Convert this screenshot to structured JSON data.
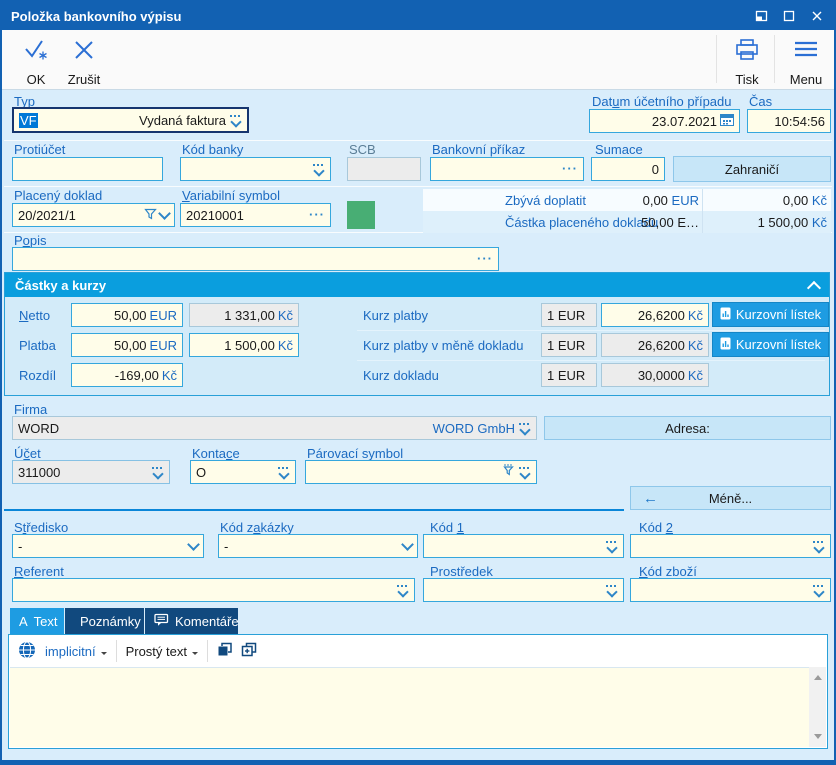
{
  "window": {
    "title": "Položka bankovního výpisu"
  },
  "toolbar": {
    "ok": "OK",
    "cancel": "Zrušit",
    "print": "Tisk",
    "menu": "Menu"
  },
  "fields": {
    "typ": {
      "label": "Typ",
      "code": "VF",
      "value": "Vydaná faktura"
    },
    "datum": {
      "label": "Datum účetního případu",
      "value": "23.07.2021"
    },
    "cas": {
      "label": "Čas",
      "value": "10:54:56"
    },
    "protiucet": {
      "label": "Protiúčet",
      "value": ""
    },
    "kod_banky": {
      "label": "Kód banky",
      "value": ""
    },
    "scb": {
      "label": "SCB",
      "value": ""
    },
    "bankovni_prikaz": {
      "label": "Bankovní příkaz",
      "value": ""
    },
    "sumace": {
      "label": "Sumace",
      "value": "0"
    },
    "zahranici": "Zahraničí",
    "placeny_doklad": {
      "label": "Placený doklad",
      "value": "20/2021/1"
    },
    "variabilni_symbol": {
      "label": "Variabilní symbol",
      "value": "20210001"
    },
    "popis": {
      "label": "Popis",
      "value": ""
    }
  },
  "summary": {
    "rows": [
      {
        "label": "Zbývá doplatit",
        "amount": "0,00",
        "currency": "EUR",
        "amount_czk": "0,00",
        "currency_czk": "Kč"
      },
      {
        "label": "Částka placeného dokladu",
        "amount": "50,00 E…",
        "currency": "",
        "amount_czk": "1 500,00",
        "currency_czk": "Kč"
      }
    ]
  },
  "kurzy": {
    "title": "Částky a kurzy",
    "amount_rows": [
      {
        "label": "Netto",
        "amount": "50,00",
        "currency": "EUR",
        "czk": "1 331,00",
        "czk_currency": "Kč"
      },
      {
        "label": "Platba",
        "amount": "50,00",
        "currency": "EUR",
        "czk": "1 500,00",
        "czk_currency": "Kč"
      },
      {
        "label": "Rozdíl",
        "amount": "-169,00",
        "currency": "Kč"
      }
    ],
    "rate_rows": [
      {
        "label": "Kurz platby",
        "unit": "1 EUR",
        "rate": "26,6200",
        "currency": "Kč",
        "button": "Kurzovní lístek"
      },
      {
        "label": "Kurz platby v měně dokladu",
        "unit": "1 EUR",
        "rate": "26,6200",
        "currency": "Kč",
        "button": "Kurzovní lístek"
      },
      {
        "label": "Kurz dokladu",
        "unit": "1 EUR",
        "rate": "30,0000",
        "currency": "Kč"
      }
    ]
  },
  "firma": {
    "label": "Firma",
    "code": "WORD",
    "name": "WORD GmbH",
    "adresa": "Adresa:"
  },
  "accounting": {
    "ucet": {
      "label": "Účet",
      "value": "311000"
    },
    "kontace": {
      "label": "Kontace",
      "value": "O"
    },
    "parovaci": {
      "label": "Párovací symbol",
      "value": ""
    },
    "mene": "Méně...",
    "mene_arrow": "←",
    "stredisko": {
      "label": "Středisko",
      "value": "-"
    },
    "kod_zakazky": {
      "label": "Kód zakázky",
      "value": "-"
    },
    "kod1": {
      "label": "Kód 1",
      "value": ""
    },
    "kod2": {
      "label": "Kód 2",
      "value": ""
    },
    "referent": {
      "label": "Referent",
      "value": ""
    },
    "prostredek": {
      "label": "Prostředek",
      "value": ""
    },
    "kod_zbozi": {
      "label": "Kód zboží",
      "value": ""
    }
  },
  "tabs": [
    {
      "label": "Text"
    },
    {
      "label": "Poznámky"
    },
    {
      "label": "Komentáře"
    }
  ],
  "text_editor": {
    "language": "implicitní",
    "format": "Prostý text",
    "content": ""
  },
  "colors": {
    "titlebar": "#1261b2",
    "section_header": "#0a9ede",
    "active_tab": "#1e9ce2",
    "inactive_tab": "#11497e",
    "field_bg": "#fffde9",
    "field_border": "#35a7dd",
    "readonly_bg": "#ececec",
    "selection": "#0078d7",
    "button_bg": "#c7e6f8",
    "accent_button": "#1e9ce2",
    "green_indicator": "#48ae74",
    "label": "#1b6ac1"
  },
  "icons": [
    "ok-check-icon",
    "cancel-x-icon",
    "printer-icon",
    "menu-icon",
    "restore-icon",
    "maximize-icon",
    "close-icon",
    "dropdown-icon",
    "chevron-down-icon",
    "ellipsis-icon",
    "calendar-icon",
    "filter-icon",
    "collapse-up-icon",
    "chart-doc-icon",
    "left-arrow-icon",
    "text-format-icon",
    "notes-icon",
    "comments-icon",
    "globe-icon",
    "copy-icon",
    "copy-add-icon",
    "scroll-up-icon",
    "scroll-down-icon"
  ]
}
